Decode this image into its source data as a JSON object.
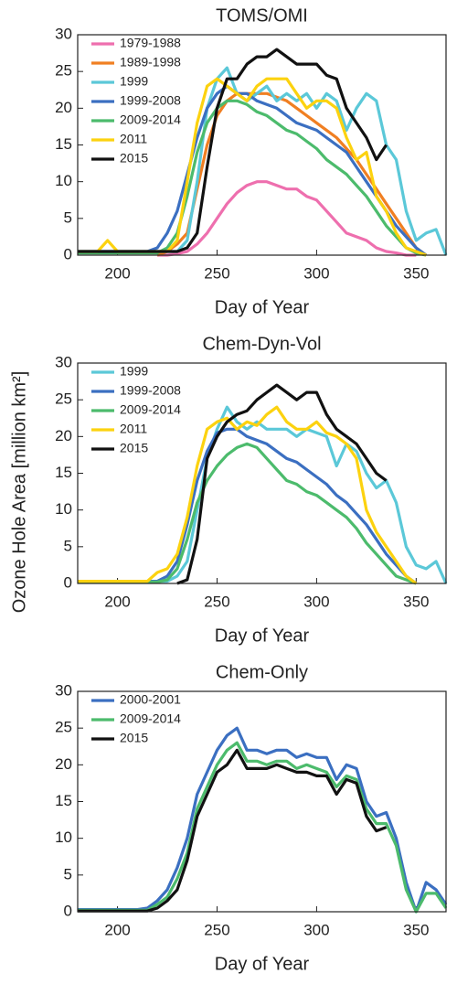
{
  "chart_data": [
    {
      "type": "line",
      "title": "TOMS/OMI",
      "xlabel": "Day of Year",
      "x": [
        180,
        185,
        190,
        195,
        200,
        205,
        210,
        215,
        220,
        225,
        230,
        235,
        240,
        245,
        250,
        255,
        260,
        265,
        270,
        275,
        280,
        285,
        290,
        295,
        300,
        305,
        310,
        315,
        320,
        325,
        330,
        335,
        340,
        345,
        350,
        355,
        360,
        365
      ],
      "xlim": [
        180,
        365
      ],
      "xticks": [
        200,
        250,
        300,
        350
      ],
      "ylim": [
        0,
        30
      ],
      "yticks": [
        0,
        5,
        10,
        15,
        20,
        25,
        30
      ],
      "legend": "upper left",
      "series": [
        {
          "name": "1979-1988",
          "color": "#ee6fae",
          "values": [
            null,
            null,
            null,
            null,
            null,
            null,
            null,
            null,
            0,
            0,
            0.2,
            0.5,
            1.5,
            3,
            5,
            7,
            8.5,
            9.5,
            10,
            10,
            9.5,
            9,
            9,
            8,
            7.5,
            6,
            4.5,
            3,
            2.5,
            2,
            1,
            0.5,
            0.3,
            0,
            0,
            null,
            null,
            null
          ]
        },
        {
          "name": "1989-1998",
          "color": "#f07f22",
          "values": [
            null,
            null,
            null,
            null,
            null,
            null,
            null,
            null,
            0,
            0.5,
            1.5,
            3,
            9,
            15,
            19,
            21,
            22,
            22,
            22,
            22,
            21.5,
            21,
            20,
            19,
            18,
            17,
            16,
            14.5,
            13,
            11,
            9,
            7,
            5,
            3,
            1,
            0,
            null,
            null
          ]
        },
        {
          "name": "1999",
          "color": "#5bc8d8",
          "values": [
            0.5,
            0.5,
            0.5,
            0.5,
            0.5,
            0.5,
            0.5,
            0.5,
            0.5,
            0.5,
            0.5,
            2,
            10,
            20,
            24,
            25.5,
            22,
            21,
            22,
            23,
            21,
            22,
            21,
            22,
            20,
            22,
            21,
            17,
            20,
            22,
            21,
            15,
            13,
            6,
            2,
            3,
            3.5,
            0
          ]
        },
        {
          "name": "1999-2008",
          "color": "#3b6fc1",
          "values": [
            0.5,
            0.5,
            0.5,
            0.5,
            0.5,
            0.5,
            0.5,
            0.5,
            1,
            3,
            6,
            11,
            16,
            20,
            22,
            23,
            22,
            22,
            21,
            20.5,
            20,
            19,
            18,
            17.5,
            17,
            16,
            15,
            14,
            12,
            10,
            8,
            6,
            4,
            2.5,
            1,
            0,
            null,
            null
          ]
        },
        {
          "name": "2009-2014",
          "color": "#4cbb6c",
          "values": [
            0.3,
            0.3,
            0.3,
            0.3,
            0.3,
            0.3,
            0.3,
            0.3,
            0.3,
            1,
            3,
            8,
            14,
            18,
            20,
            21,
            21,
            20.5,
            19.5,
            19,
            18,
            17,
            16.5,
            15.5,
            14.5,
            13,
            12,
            11,
            9.5,
            8,
            6,
            4,
            2.5,
            1,
            0.3,
            0,
            null,
            null
          ]
        },
        {
          "name": "2011",
          "color": "#fcd20f",
          "values": [
            0.5,
            0.5,
            0.5,
            2,
            0.5,
            0.5,
            0.5,
            0.5,
            0.5,
            0.5,
            2,
            10,
            18,
            23,
            24,
            23,
            22,
            21,
            23,
            24,
            24,
            24,
            22,
            20,
            21,
            21,
            20,
            16,
            13,
            14,
            8,
            6,
            3,
            1,
            0.5,
            0,
            null,
            null
          ]
        },
        {
          "name": "2015",
          "color": "#111111",
          "values": [
            0.5,
            0.5,
            0.5,
            0.5,
            0.5,
            0.5,
            0.5,
            0.5,
            0.5,
            0.5,
            0.5,
            1,
            3,
            12,
            20,
            24,
            24,
            26,
            27,
            27,
            28,
            27,
            26,
            26,
            26,
            24.5,
            24,
            20,
            18,
            16,
            13,
            15,
            null,
            null,
            null,
            null,
            null,
            null
          ]
        }
      ]
    },
    {
      "type": "line",
      "title": "Chem-Dyn-Vol",
      "xlabel": "Day of Year",
      "ylabel": "Ozone Hole Area [million km²]",
      "x": [
        180,
        185,
        190,
        195,
        200,
        205,
        210,
        215,
        220,
        225,
        230,
        235,
        240,
        245,
        250,
        255,
        260,
        265,
        270,
        275,
        280,
        285,
        290,
        295,
        300,
        305,
        310,
        315,
        320,
        325,
        330,
        335,
        340,
        345,
        350,
        355,
        360,
        365
      ],
      "xlim": [
        180,
        365
      ],
      "xticks": [
        200,
        250,
        300,
        350
      ],
      "ylim": [
        0,
        30
      ],
      "yticks": [
        0,
        5,
        10,
        15,
        20,
        25,
        30
      ],
      "legend": "upper left",
      "series": [
        {
          "name": "1999",
          "color": "#5bc8d8",
          "values": [
            0.3,
            0.3,
            0.3,
            0.3,
            0.3,
            0.3,
            0.3,
            0.3,
            0.3,
            0.3,
            1,
            3,
            10,
            17,
            21,
            24,
            22,
            21,
            22,
            21,
            21,
            21,
            20,
            21,
            20.5,
            20,
            16,
            19,
            18,
            15,
            13,
            14,
            11,
            5,
            2.5,
            2,
            3,
            0
          ]
        },
        {
          "name": "1999-2008",
          "color": "#3b6fc1",
          "values": [
            0.3,
            0.3,
            0.3,
            0.3,
            0.3,
            0.3,
            0.3,
            0.3,
            0.3,
            1,
            3,
            8,
            14,
            18,
            20.5,
            21,
            21,
            20,
            19.5,
            19,
            18,
            17,
            16.5,
            15.5,
            14.5,
            13.5,
            12,
            11,
            9.5,
            8,
            6,
            4,
            2.5,
            1,
            0,
            null,
            null,
            null
          ]
        },
        {
          "name": "2009-2014",
          "color": "#4cbb6c",
          "values": [
            0.2,
            0.2,
            0.2,
            0.2,
            0.2,
            0.2,
            0.2,
            0.2,
            0.2,
            0.5,
            2,
            6,
            11,
            14,
            16,
            17.5,
            18.5,
            19,
            18.5,
            17,
            15.5,
            14,
            13.5,
            12.5,
            12,
            11,
            10,
            9,
            7.5,
            5.5,
            4,
            2.5,
            1,
            0.5,
            0,
            null,
            null,
            null
          ]
        },
        {
          "name": "2011",
          "color": "#fcd20f",
          "values": [
            0.3,
            0.3,
            0.3,
            0.3,
            0.3,
            0.3,
            0.3,
            0.3,
            1.5,
            2,
            4,
            9,
            16,
            21,
            22,
            22.5,
            21,
            22,
            21.5,
            23,
            24,
            22,
            21,
            21,
            22,
            20.5,
            20,
            19,
            17,
            10,
            7,
            5,
            3,
            1,
            0,
            null,
            null,
            null
          ]
        },
        {
          "name": "2015",
          "color": "#111111",
          "values": [
            null,
            null,
            null,
            null,
            null,
            null,
            null,
            null,
            null,
            null,
            0,
            0.5,
            6,
            17,
            20,
            22,
            23,
            23.5,
            25,
            26,
            27,
            26,
            25,
            26,
            26,
            23,
            21,
            20,
            19,
            17,
            15,
            14,
            null,
            null,
            null,
            null,
            null,
            null
          ]
        }
      ]
    },
    {
      "type": "line",
      "title": "Chem-Only",
      "xlabel": "Day of Year",
      "x": [
        180,
        185,
        190,
        195,
        200,
        205,
        210,
        215,
        220,
        225,
        230,
        235,
        240,
        245,
        250,
        255,
        260,
        265,
        270,
        275,
        280,
        285,
        290,
        295,
        300,
        305,
        310,
        315,
        320,
        325,
        330,
        335,
        340,
        345,
        350,
        355,
        360,
        365
      ],
      "xlim": [
        180,
        365
      ],
      "xticks": [
        200,
        250,
        300,
        350
      ],
      "ylim": [
        0,
        30
      ],
      "yticks": [
        0,
        5,
        10,
        15,
        20,
        25,
        30
      ],
      "legend": "upper left",
      "series": [
        {
          "name": "2000-2001",
          "color": "#3b6fc1",
          "values": [
            0.3,
            0.3,
            0.3,
            0.3,
            0.3,
            0.3,
            0.3,
            0.5,
            1.5,
            3,
            6,
            10,
            16,
            19,
            22,
            24,
            25,
            22,
            22,
            21.5,
            22,
            22,
            21,
            21.5,
            21,
            21,
            18,
            20,
            19.5,
            15,
            13,
            13.5,
            10,
            4,
            0,
            4,
            3,
            1
          ]
        },
        {
          "name": "2009-2014",
          "color": "#4cbb6c",
          "values": [
            0.2,
            0.2,
            0.2,
            0.2,
            0.2,
            0.2,
            0.2,
            0.2,
            1,
            2,
            4.5,
            8,
            14,
            17,
            20,
            22,
            23,
            20.5,
            20.5,
            20,
            20.5,
            20.5,
            19.5,
            20,
            19.5,
            19,
            17,
            18.5,
            18,
            14,
            12,
            12,
            9,
            3,
            0,
            2.5,
            2.5,
            0.5
          ]
        },
        {
          "name": "2015",
          "color": "#111111",
          "values": [
            0.1,
            0.1,
            0.1,
            0.1,
            0.1,
            0.1,
            0.1,
            0.1,
            0.5,
            1.5,
            3,
            7,
            13,
            16,
            19,
            20,
            22,
            19.5,
            19.5,
            19.5,
            20,
            19.5,
            19,
            19,
            18.5,
            18.5,
            16,
            18,
            17.5,
            13,
            11,
            11.5,
            null,
            null,
            null,
            null,
            null,
            null
          ]
        }
      ]
    }
  ]
}
